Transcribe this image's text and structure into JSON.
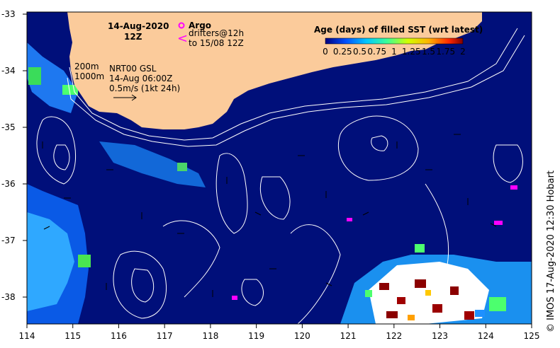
{
  "title": {
    "date": "14-Aug-2020",
    "time": "12Z"
  },
  "legend": {
    "argo_label": "Argo",
    "drifters_line1": "drifters@12h",
    "drifters_line2": "to 15/08 12Z",
    "depth_200": "200m",
    "depth_1000": "1000m",
    "current_product": "NRT00 GSL",
    "current_date": "14-Aug 06:00Z",
    "scale_label": "0.5m/s (1kt 24h)"
  },
  "colorbar": {
    "title": "Age (days) of filled SST (wrt latest)",
    "ticks": [
      "0",
      "0.25",
      "0.5",
      "0.75",
      "1",
      "1.25",
      "1.5",
      "1.75",
      "2"
    ],
    "range": [
      0,
      2
    ]
  },
  "axes": {
    "x_ticks": [
      "114",
      "115",
      "116",
      "117",
      "118",
      "119",
      "120",
      "121",
      "122",
      "123",
      "124",
      "125"
    ],
    "y_ticks": [
      "-33",
      "-34",
      "-35",
      "-36",
      "-37",
      "-38"
    ]
  },
  "credit": "© IMOS 17-Aug-2020 12:30 Hobart",
  "colors": {
    "ocean": "#000f7a",
    "land": "#fbcb9b",
    "argo": "#ff00ff",
    "contour": "#ffffff"
  }
}
